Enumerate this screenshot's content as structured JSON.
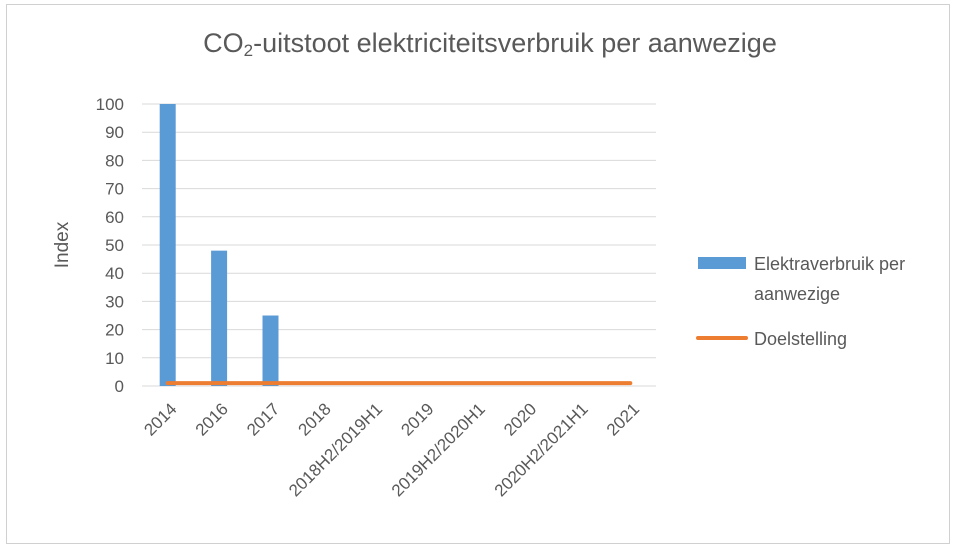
{
  "chart_data": {
    "type": "bar",
    "title_prefix": "CO",
    "title_sub": "2",
    "title_suffix": "-uitstoot elektriciteitsverbruik per aanwezige",
    "ylabel": "Index",
    "xlabel": "",
    "ylim": [
      0,
      100
    ],
    "yticks": [
      0,
      10,
      20,
      30,
      40,
      50,
      60,
      70,
      80,
      90,
      100
    ],
    "grid": true,
    "legend_position": "right",
    "categories": [
      "2014",
      "2016",
      "2017",
      "2018",
      "2018H2/2019H1",
      "2019",
      "2019H2/2020H1",
      "2020",
      "2020H2/2021H1",
      "2021"
    ],
    "series": [
      {
        "name": "Elektraverbruik per aanwezige",
        "type": "bar",
        "color": "#5b9bd5",
        "values": [
          100,
          48,
          25,
          null,
          null,
          null,
          null,
          null,
          null,
          null
        ]
      },
      {
        "name": "Doelstelling",
        "type": "line",
        "color": "#ed7d31",
        "values": [
          1,
          1,
          1,
          1,
          1,
          1,
          1,
          1,
          1,
          1
        ]
      }
    ],
    "legend": [
      {
        "lines": [
          "Elektraverbruik per",
          "aanwezige"
        ],
        "color": "#5b9bd5"
      },
      {
        "lines": [
          "Doelstelling"
        ],
        "color": "#ed7d31"
      }
    ]
  }
}
